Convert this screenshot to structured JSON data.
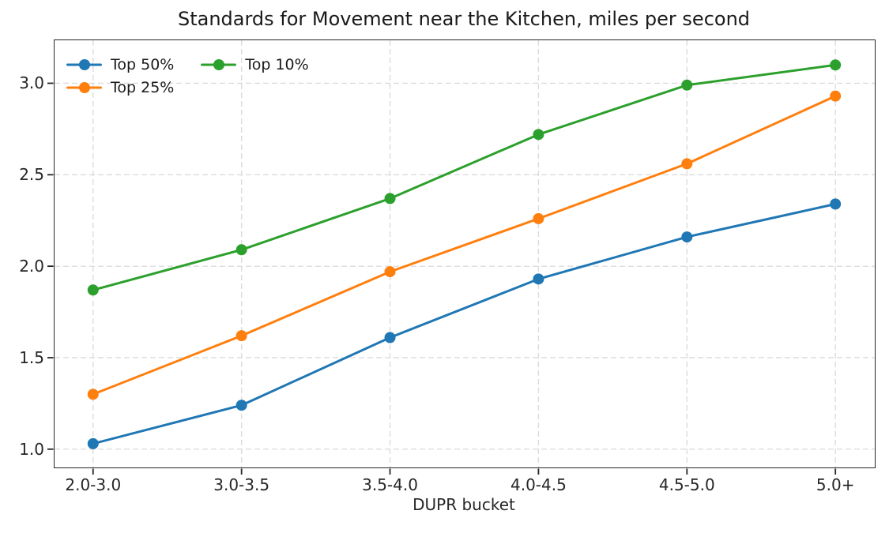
{
  "chart_data": {
    "type": "line",
    "title": "Standards for Movement near the Kitchen, miles per second",
    "xlabel": "DUPR bucket",
    "ylabel": "",
    "categories": [
      "2.0-3.0",
      "3.0-3.5",
      "3.5-4.0",
      "4.0-4.5",
      "4.5-5.0",
      "5.0+"
    ],
    "series": [
      {
        "name": "Top 50%",
        "color": "#1f77b4",
        "values": [
          1.03,
          1.24,
          1.61,
          1.93,
          2.16,
          2.34
        ]
      },
      {
        "name": "Top 25%",
        "color": "#ff7f0e",
        "values": [
          1.3,
          1.62,
          1.97,
          2.26,
          2.56,
          2.93
        ]
      },
      {
        "name": "Top 10%",
        "color": "#2ca02c",
        "values": [
          1.87,
          2.09,
          2.37,
          2.72,
          2.99,
          3.1
        ]
      }
    ],
    "yticks": [
      1.0,
      1.5,
      2.0,
      2.5,
      3.0
    ],
    "ytick_labels": [
      "1.0",
      "1.5",
      "2.0",
      "2.5",
      "3.0"
    ],
    "ylim": [
      0.9,
      3.235
    ],
    "grid": true,
    "grid_color": "#dcdcdc",
    "axis_color": "#262626",
    "legend_position": "upper-left",
    "legend_columns": 2,
    "marker": "circle"
  }
}
